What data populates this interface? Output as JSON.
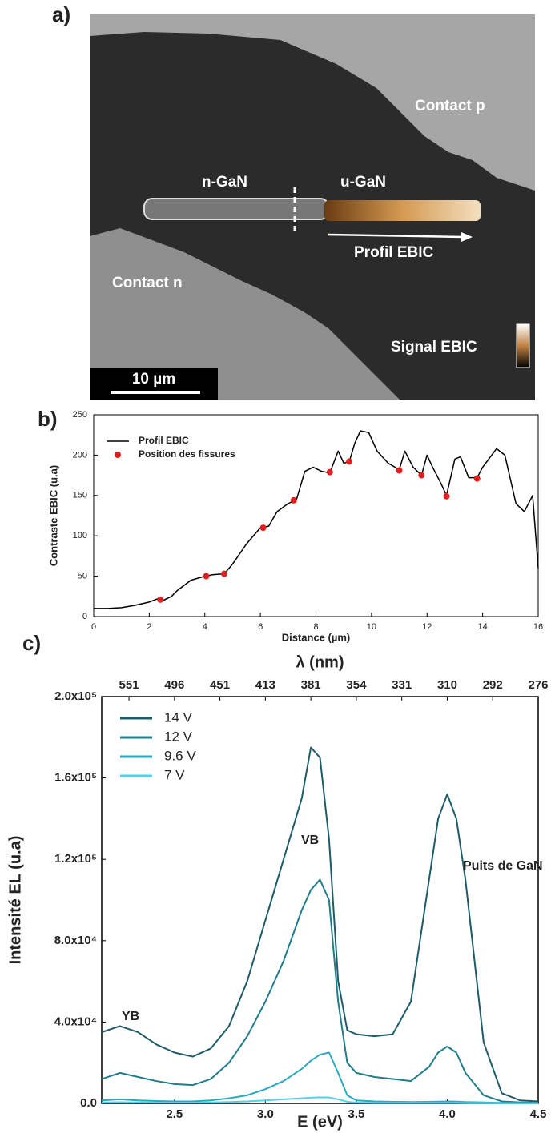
{
  "image": {
    "label": "a)",
    "contact_p": "Contact p",
    "n_gan": "n-GaN",
    "u_gan": "u-GaN",
    "profile": "Profil EBIC",
    "contact_n": "Contact n",
    "signal": "Signal EBIC",
    "scale_bar": "10 µm"
  },
  "chart_data": [
    {
      "type": "line",
      "title": "b)",
      "xlabel": "Distance (µm)",
      "ylabel": "Contraste EBIC (u.a)",
      "xlim": [
        0,
        16
      ],
      "xticks": [
        0,
        2,
        4,
        6,
        8,
        10,
        12,
        14,
        16
      ],
      "ylim": [
        0,
        250
      ],
      "yticks": [
        0,
        50,
        100,
        150,
        200,
        250
      ],
      "legend": "upper left",
      "series": [
        {
          "name": "Profil EBIC",
          "color": "#000000",
          "x": [
            0,
            0.5,
            1,
            1.5,
            2,
            2.3,
            2.5,
            2.8,
            3,
            3.5,
            4,
            4.3,
            4.7,
            5,
            5.5,
            6,
            6.3,
            6.6,
            7,
            7.3,
            7.6,
            7.9,
            8.2,
            8.5,
            8.8,
            9,
            9.2,
            9.4,
            9.6,
            9.9,
            10.2,
            10.6,
            11,
            11.2,
            11.5,
            11.8,
            12,
            12.2,
            12.5,
            12.7,
            13,
            13.2,
            13.5,
            13.8,
            14,
            14.5,
            14.8,
            15.2,
            15.5,
            15.8,
            16
          ],
          "values": [
            10,
            10,
            11,
            14,
            18,
            22,
            20,
            25,
            32,
            45,
            50,
            52,
            53,
            65,
            90,
            110,
            112,
            130,
            140,
            145,
            180,
            185,
            180,
            178,
            205,
            190,
            192,
            215,
            230,
            228,
            205,
            190,
            182,
            205,
            185,
            175,
            200,
            185,
            165,
            150,
            195,
            198,
            172,
            172,
            185,
            208,
            200,
            140,
            130,
            150,
            60
          ]
        },
        {
          "name": "Position des fissures",
          "type": "scatter",
          "color": "#e02020",
          "x": [
            2.4,
            4.05,
            4.7,
            6.1,
            7.2,
            8.5,
            9.2,
            11,
            11.8,
            12.7,
            13.8
          ],
          "values": [
            21,
            50,
            53,
            110,
            144,
            179,
            192,
            181,
            175,
            149,
            171
          ]
        }
      ]
    },
    {
      "type": "line",
      "title": "c)",
      "xlabel": "E (eV)",
      "x2label": "λ (nm)",
      "ylabel": "Intensité EL (u.a)",
      "xlim": [
        2.1,
        4.5
      ],
      "xticks": [
        2.5,
        {
          "value": 3,
          "label": "3.0"
        },
        3.5,
        {
          "value": 4,
          "label": "4.0"
        },
        4.5
      ],
      "x2ticks": [
        {
          "value": 2.25,
          "label": "551"
        },
        {
          "value": 2.5,
          "label": "496"
        },
        {
          "value": 2.75,
          "label": "451"
        },
        {
          "value": 3.0,
          "label": "413"
        },
        {
          "value": 3.25,
          "label": "381"
        },
        {
          "value": 3.5,
          "label": "354"
        },
        {
          "value": 3.75,
          "label": "331"
        },
        {
          "value": 4.0,
          "label": "310"
        },
        {
          "value": 4.25,
          "label": "292"
        },
        {
          "value": 4.5,
          "label": "276"
        }
      ],
      "ylim": [
        0,
        200000
      ],
      "yticks": [
        {
          "value": 0,
          "label": "0.0"
        },
        {
          "value": 40000,
          "label": "4.0x10⁴"
        },
        {
          "value": 80000,
          "label": "8.0x10⁴"
        },
        {
          "value": 120000,
          "label": "1.2x10⁵"
        },
        {
          "value": 160000,
          "label": "1.6x10⁵"
        },
        {
          "value": 200000,
          "label": "2.0x10⁵"
        }
      ],
      "legend": "upper left",
      "annotations": [
        "YB",
        "VB",
        "Puits de GaN"
      ],
      "x": [
        2.1,
        2.2,
        2.3,
        2.4,
        2.5,
        2.6,
        2.7,
        2.8,
        2.9,
        3.0,
        3.1,
        3.2,
        3.25,
        3.3,
        3.35,
        3.4,
        3.45,
        3.5,
        3.6,
        3.7,
        3.8,
        3.9,
        3.95,
        4.0,
        4.05,
        4.1,
        4.2,
        4.3,
        4.4,
        4.5
      ],
      "series": [
        {
          "name": "14 V",
          "color": "#1d5c68",
          "values": [
            35000,
            38000,
            35000,
            29000,
            25000,
            23000,
            27000,
            38000,
            60000,
            90000,
            120000,
            150000,
            175000,
            170000,
            130000,
            60000,
            36000,
            34000,
            33000,
            34000,
            50000,
            110000,
            140000,
            152000,
            140000,
            110000,
            30000,
            5000,
            1500,
            1000
          ]
        },
        {
          "name": "12 V",
          "color": "#207d8a",
          "values": [
            12000,
            15000,
            13000,
            11000,
            9500,
            9000,
            12000,
            20000,
            33000,
            50000,
            70000,
            95000,
            105000,
            110000,
            100000,
            50000,
            20000,
            15000,
            13000,
            12000,
            11000,
            18000,
            25000,
            28000,
            25000,
            15000,
            4000,
            1000,
            500,
            300
          ]
        },
        {
          "name": "9.6 V",
          "color": "#28aabf",
          "values": [
            1500,
            2000,
            1500,
            1200,
            1000,
            1000,
            1500,
            2500,
            4000,
            7000,
            11000,
            17000,
            21000,
            24000,
            25000,
            15000,
            4000,
            1500,
            1000,
            800,
            700,
            800,
            900,
            1000,
            900,
            700,
            500,
            300,
            200,
            100
          ]
        },
        {
          "name": "7 V",
          "color": "#4fd2ec",
          "values": [
            500,
            600,
            500,
            400,
            400,
            400,
            500,
            700,
            1000,
            1500,
            2000,
            2500,
            2800,
            3000,
            2900,
            2000,
            800,
            400,
            300,
            300,
            300,
            300,
            300,
            300,
            300,
            200,
            200,
            100,
            100,
            100
          ]
        }
      ]
    }
  ]
}
